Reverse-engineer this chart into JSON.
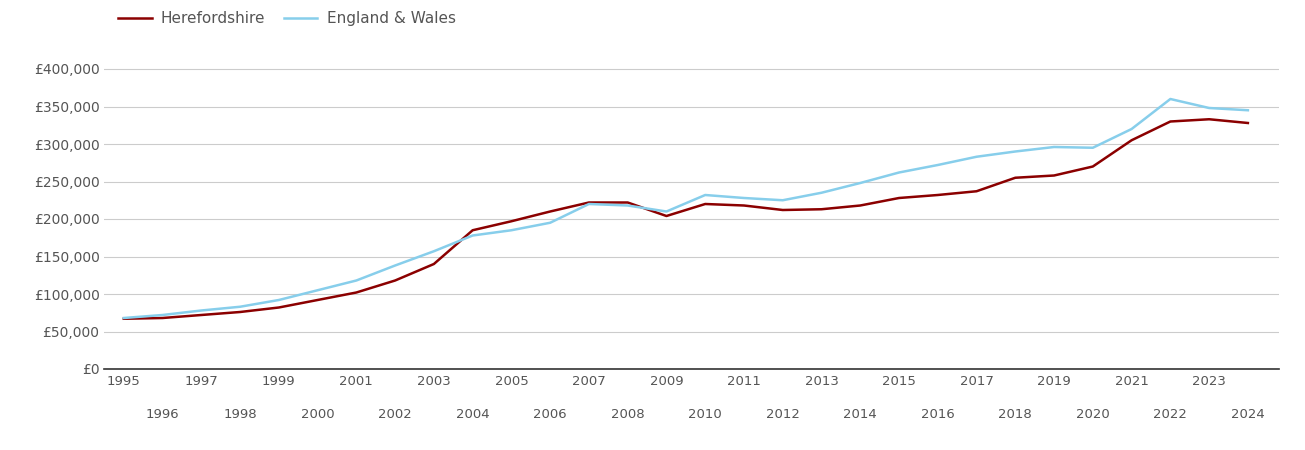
{
  "herefordshire": {
    "years": [
      1995,
      1996,
      1997,
      1998,
      1999,
      2000,
      2001,
      2002,
      2003,
      2004,
      2005,
      2006,
      2007,
      2008,
      2009,
      2010,
      2011,
      2012,
      2013,
      2014,
      2015,
      2016,
      2017,
      2018,
      2019,
      2020,
      2021,
      2022,
      2023,
      2024
    ],
    "values": [
      67000,
      68000,
      72000,
      76000,
      82000,
      92000,
      102000,
      118000,
      140000,
      185000,
      197000,
      210000,
      222000,
      222000,
      204000,
      220000,
      218000,
      212000,
      213000,
      218000,
      228000,
      232000,
      237000,
      255000,
      258000,
      270000,
      305000,
      330000,
      333000,
      328000
    ]
  },
  "england_wales": {
    "years": [
      1995,
      1996,
      1997,
      1998,
      1999,
      2000,
      2001,
      2002,
      2003,
      2004,
      2005,
      2006,
      2007,
      2008,
      2009,
      2010,
      2011,
      2012,
      2013,
      2014,
      2015,
      2016,
      2017,
      2018,
      2019,
      2020,
      2021,
      2022,
      2023,
      2024
    ],
    "values": [
      68000,
      72000,
      78000,
      83000,
      92000,
      105000,
      118000,
      138000,
      157000,
      178000,
      185000,
      195000,
      220000,
      218000,
      210000,
      232000,
      228000,
      225000,
      235000,
      248000,
      262000,
      272000,
      283000,
      290000,
      296000,
      295000,
      320000,
      360000,
      348000,
      345000
    ]
  },
  "herefordshire_color": "#8B0000",
  "england_wales_color": "#87CEEB",
  "background_color": "#ffffff",
  "grid_color": "#cccccc",
  "line_width": 1.8,
  "ylim": [
    0,
    420000
  ],
  "yticks": [
    0,
    50000,
    100000,
    150000,
    200000,
    250000,
    300000,
    350000,
    400000
  ],
  "ytick_labels": [
    "£0",
    "£50,000",
    "£100,000",
    "£150,000",
    "£200,000",
    "£250,000",
    "£300,000",
    "£350,000",
    "£400,000"
  ],
  "legend_herefordshire": "Herefordshire",
  "legend_england_wales": "England & Wales",
  "font_color": "#555555",
  "odd_years": [
    1995,
    1997,
    1999,
    2001,
    2003,
    2005,
    2007,
    2009,
    2011,
    2013,
    2015,
    2017,
    2019,
    2021,
    2023
  ],
  "even_years": [
    1996,
    1998,
    2000,
    2002,
    2004,
    2006,
    2008,
    2010,
    2012,
    2014,
    2016,
    2018,
    2020,
    2022,
    2024
  ]
}
